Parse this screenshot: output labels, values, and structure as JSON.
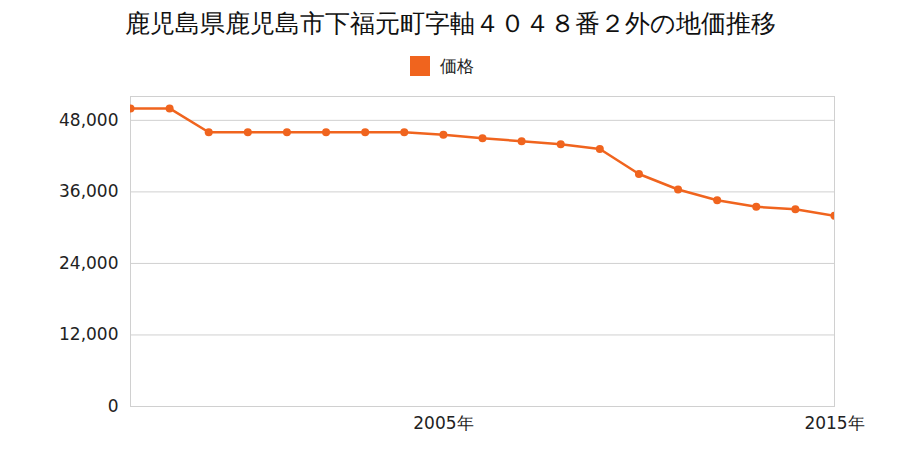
{
  "chart_data": {
    "type": "line",
    "title": "鹿児島県鹿児島市下福元町字軸４０４８番２外の地価推移",
    "x": [
      1997,
      1998,
      1999,
      2000,
      2001,
      2002,
      2003,
      2004,
      2005,
      2006,
      2007,
      2008,
      2009,
      2010,
      2011,
      2012,
      2013,
      2014,
      2015
    ],
    "series": [
      {
        "name": "価格",
        "color": "#f0641e",
        "values": [
          50000,
          50000,
          46000,
          46000,
          46000,
          46000,
          46000,
          46000,
          45600,
          45000,
          44500,
          44000,
          43200,
          39000,
          36400,
          34600,
          33500,
          33100,
          32000
        ]
      }
    ],
    "xlim": [
      1997,
      2015
    ],
    "xticks": [
      {
        "value": 2005,
        "label": "2005年"
      },
      {
        "value": 2015,
        "label": "2015年"
      }
    ],
    "ylim": [
      0,
      52000
    ],
    "yticks": [
      0,
      {
        "value": 12000,
        "label": "12,000"
      },
      {
        "value": 24000,
        "label": "24,000"
      },
      {
        "value": 36000,
        "label": "36,000"
      },
      {
        "value": 48000,
        "label": "48,000"
      }
    ],
    "grid": true,
    "legend": "top",
    "marker": "circle",
    "line_style": "solid"
  }
}
